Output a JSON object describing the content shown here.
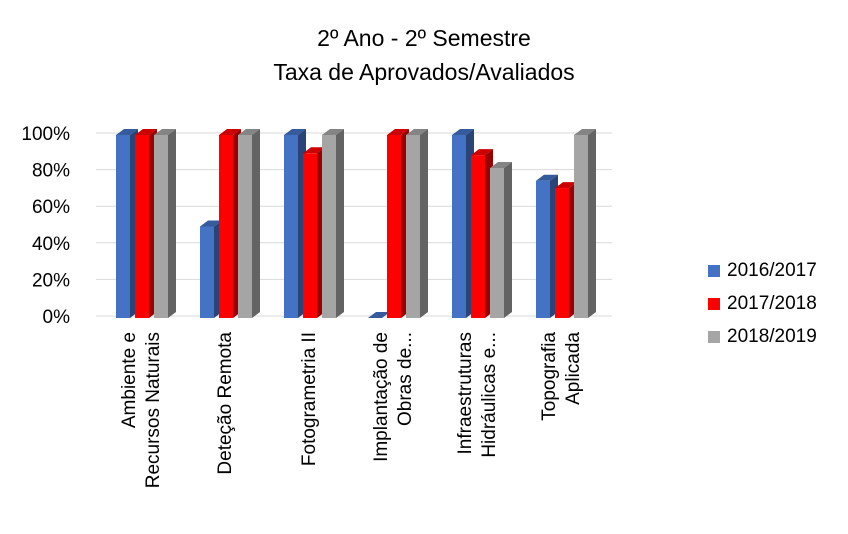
{
  "chart_data": {
    "type": "bar",
    "title": [
      "2º Ano - 2º Semestre",
      "Taxa de Aprovados/Avaliados"
    ],
    "categories": [
      [
        "Ambiente e",
        "Recursos Naturais"
      ],
      [
        "Deteção Remota"
      ],
      [
        "Fotogrametria II"
      ],
      [
        "Implantação de",
        "Obras de..."
      ],
      [
        "Infraestruturas",
        "Hidráulicas e..."
      ],
      [
        "Topografia",
        "Aplicada"
      ]
    ],
    "series": [
      {
        "name": "2016/2017",
        "color": "#4472c4",
        "values": [
          100,
          50,
          100,
          0,
          100,
          75
        ]
      },
      {
        "name": "2017/2018",
        "color": "#ff0000",
        "values": [
          100,
          100,
          90,
          100,
          89,
          71
        ]
      },
      {
        "name": "2018/2019",
        "color": "#a5a5a5",
        "values": [
          100,
          100,
          100,
          100,
          82,
          100
        ]
      }
    ],
    "ylim": [
      0,
      100
    ],
    "yticks": [
      {
        "value": 0,
        "label": "0%"
      },
      {
        "value": 20,
        "label": "20%"
      },
      {
        "value": 40,
        "label": "40%"
      },
      {
        "value": 60,
        "label": "60%"
      },
      {
        "value": 80,
        "label": "80%"
      },
      {
        "value": 100,
        "label": "100%"
      }
    ],
    "grid": true,
    "legend": "right"
  }
}
